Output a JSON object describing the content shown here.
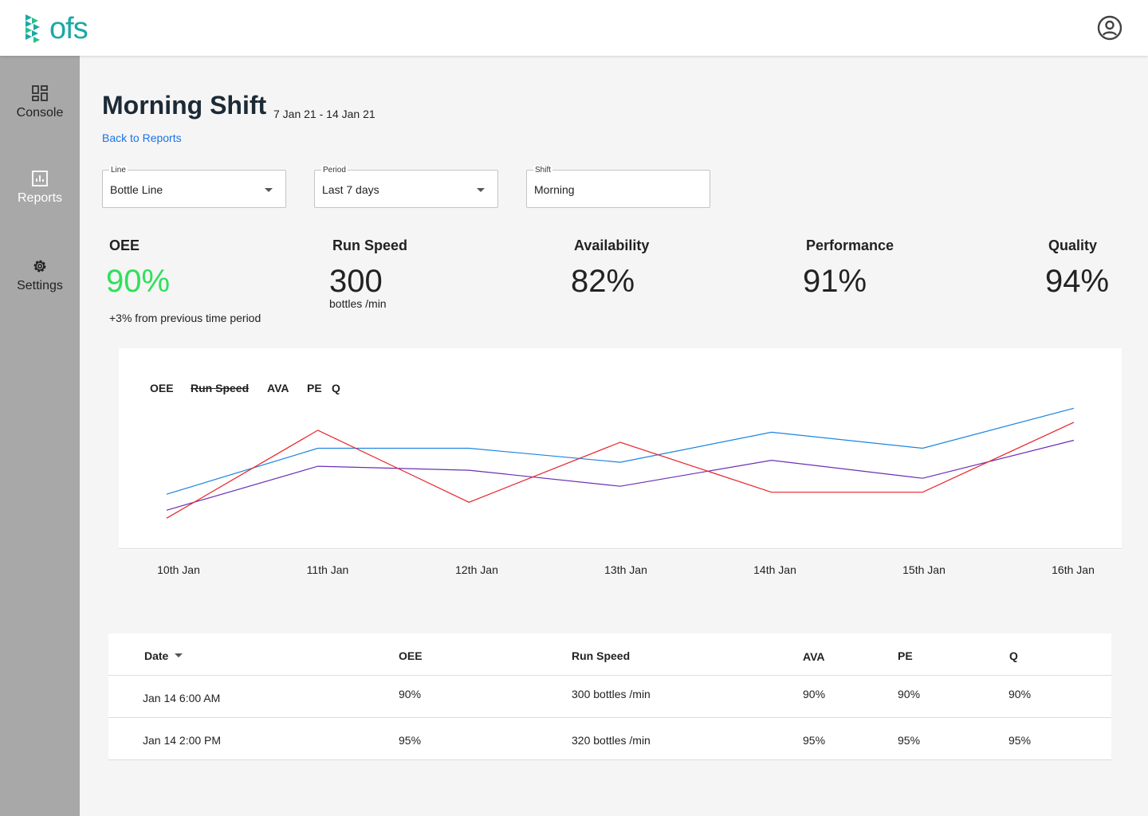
{
  "brand": {
    "logo_text": "ofs",
    "accent": "#1aa9a4"
  },
  "header": {
    "user_icon": "user-circle-icon"
  },
  "sidebar": {
    "items": [
      {
        "label": "Console",
        "icon": "dashboard-grid-icon"
      },
      {
        "label": "Reports",
        "icon": "bar-chart-icon"
      },
      {
        "label": "Settings",
        "icon": "gear-icon"
      }
    ]
  },
  "page": {
    "title": "Morning Shift",
    "date_range": "7 Jan 21 - 14 Jan 21",
    "back_link": "Back to Reports"
  },
  "filters": {
    "line": {
      "label": "Line",
      "value": "Bottle Line"
    },
    "period": {
      "label": "Period",
      "value": "Last 7 days"
    },
    "shift": {
      "label": "Shift",
      "value": "Morning"
    }
  },
  "kpis": {
    "oee": {
      "title": "OEE",
      "value": "90%",
      "note": "+3% from previous time period",
      "color": "#2ee05a"
    },
    "run_speed": {
      "title": "Run Speed",
      "value": "300",
      "unit": "bottles /min"
    },
    "availability": {
      "title": "Availability",
      "value": "82%"
    },
    "performance": {
      "title": "Performance",
      "value": "91%"
    },
    "quality": {
      "title": "Quality",
      "value": "94%"
    }
  },
  "chart_data": {
    "type": "line",
    "legend": [
      {
        "label": "OEE",
        "enabled": true
      },
      {
        "label": "Run Speed",
        "enabled": false
      },
      {
        "label": "AVA",
        "enabled": true
      },
      {
        "label": "PE",
        "enabled": true
      },
      {
        "label": "Q",
        "enabled": true
      }
    ],
    "categories": [
      "10th Jan",
      "11th Jan",
      "12th Jan",
      "13th Jan",
      "14th Jan",
      "15th Jan",
      "16th Jan"
    ],
    "ylim": [
      0,
      100
    ],
    "grid": false,
    "series": [
      {
        "color": "#1a85e0",
        "values": [
          27,
          50,
          50,
          43,
          58,
          50,
          70
        ]
      },
      {
        "color": "#6a2fb5",
        "values": [
          19,
          41,
          39,
          31,
          44,
          35,
          54
        ]
      },
      {
        "color": "#e8232b",
        "values": [
          15,
          59,
          23,
          53,
          28,
          28,
          63
        ]
      }
    ]
  },
  "table": {
    "columns": [
      "Date",
      "OEE",
      "Run Speed",
      "AVA",
      "PE",
      "Q"
    ],
    "rows": [
      [
        "Jan 14 6:00 AM",
        "90%",
        "300 bottles /min",
        "90%",
        "90%",
        "90%"
      ],
      [
        "Jan 14 2:00 PM",
        "95%",
        "320 bottles /min",
        "95%",
        "95%",
        "95%"
      ]
    ]
  }
}
